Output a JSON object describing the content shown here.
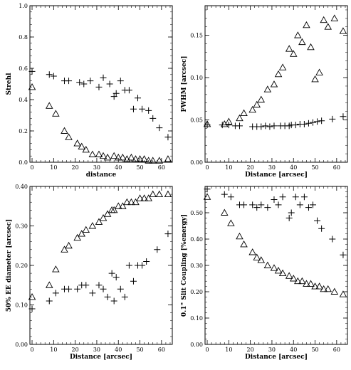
{
  "chart_data": [
    {
      "type": "scatter",
      "xlabel": "distance",
      "ylabel": "Strehl",
      "xlim": [
        -1,
        65
      ],
      "ylim": [
        0,
        1.0
      ],
      "xticks": [
        "0",
        "10",
        "20",
        "30",
        "40",
        "50",
        "60"
      ],
      "yticks": [
        "0.0",
        "0.2",
        "0.4",
        "0.6",
        "0.8",
        "1.0"
      ],
      "series": [
        {
          "marker": "plus",
          "x": [
            0,
            8,
            10,
            15,
            17,
            22,
            24,
            27,
            31,
            33,
            36,
            38,
            39,
            41,
            43,
            45,
            47,
            49,
            51,
            54,
            56,
            59,
            63
          ],
          "y": [
            0.58,
            0.56,
            0.55,
            0.52,
            0.52,
            0.51,
            0.5,
            0.52,
            0.48,
            0.54,
            0.5,
            0.42,
            0.44,
            0.52,
            0.46,
            0.46,
            0.34,
            0.41,
            0.34,
            0.33,
            0.28,
            0.22,
            0.16
          ]
        },
        {
          "marker": "triangle",
          "x": [
            0,
            8,
            11,
            15,
            17,
            21,
            23,
            25,
            28,
            31,
            33,
            35,
            38,
            40,
            42,
            44,
            46,
            48,
            50,
            52,
            54,
            56,
            59,
            63
          ],
          "y": [
            0.48,
            0.36,
            0.31,
            0.2,
            0.16,
            0.12,
            0.1,
            0.08,
            0.05,
            0.05,
            0.04,
            0.03,
            0.04,
            0.03,
            0.03,
            0.02,
            0.03,
            0.02,
            0.02,
            0.02,
            0.01,
            0.01,
            0.01,
            0.02
          ]
        }
      ]
    },
    {
      "type": "scatter",
      "xlabel": "Distance [arcsec]",
      "ylabel": "FWHM [arcsec]",
      "xlim": [
        -1,
        65
      ],
      "ylim": [
        0,
        0.185
      ],
      "xticks": [
        "0",
        "10",
        "20",
        "30",
        "40",
        "50",
        "60"
      ],
      "yticks": [
        "0.00",
        "0.05",
        "0.10",
        "0.15"
      ],
      "series": [
        {
          "marker": "plus",
          "x": [
            0,
            7,
            10,
            13,
            15,
            21,
            23,
            25,
            27,
            29,
            31,
            34,
            36,
            38,
            39,
            41,
            43,
            45,
            47,
            49,
            51,
            53,
            58,
            63
          ],
          "y": [
            0.044,
            0.044,
            0.044,
            0.043,
            0.043,
            0.042,
            0.042,
            0.042,
            0.043,
            0.042,
            0.043,
            0.043,
            0.043,
            0.043,
            0.044,
            0.044,
            0.045,
            0.045,
            0.046,
            0.047,
            0.048,
            0.049,
            0.051,
            0.054
          ]
        },
        {
          "marker": "triangle",
          "x": [
            0,
            8,
            10,
            15,
            17,
            21,
            23,
            25,
            28,
            31,
            33,
            35,
            38,
            40,
            42,
            44,
            46,
            48,
            50,
            52,
            54,
            56,
            59,
            63
          ],
          "y": [
            0.045,
            0.045,
            0.048,
            0.052,
            0.058,
            0.062,
            0.068,
            0.074,
            0.086,
            0.092,
            0.104,
            0.112,
            0.134,
            0.128,
            0.15,
            0.142,
            0.162,
            0.136,
            0.098,
            0.106,
            0.168,
            0.16,
            0.17,
            0.155
          ]
        }
      ]
    },
    {
      "type": "scatter",
      "xlabel": "Distance [arcsec]",
      "ylabel": "50% EE diameter [arcsec]",
      "xlim": [
        -1,
        65
      ],
      "ylim": [
        0,
        0.4
      ],
      "xticks": [
        "0",
        "10",
        "20",
        "30",
        "40",
        "50",
        "60"
      ],
      "yticks": [
        "0.00",
        "0.10",
        "0.20",
        "0.30",
        "0.40"
      ],
      "series": [
        {
          "marker": "plus",
          "x": [
            0,
            8,
            11,
            15,
            17,
            21,
            23,
            25,
            28,
            31,
            33,
            35,
            37,
            38,
            39,
            41,
            43,
            45,
            47,
            49,
            51,
            53,
            58,
            63
          ],
          "y": [
            0.09,
            0.11,
            0.13,
            0.14,
            0.14,
            0.14,
            0.15,
            0.15,
            0.13,
            0.15,
            0.14,
            0.12,
            0.18,
            0.11,
            0.17,
            0.14,
            0.12,
            0.2,
            0.16,
            0.2,
            0.2,
            0.21,
            0.24,
            0.28
          ]
        },
        {
          "marker": "triangle",
          "x": [
            0,
            8,
            11,
            15,
            17,
            21,
            23,
            25,
            28,
            31,
            33,
            35,
            37,
            38,
            40,
            42,
            44,
            46,
            48,
            50,
            52,
            54,
            56,
            59,
            63
          ],
          "y": [
            0.12,
            0.15,
            0.19,
            0.24,
            0.25,
            0.27,
            0.28,
            0.29,
            0.3,
            0.31,
            0.32,
            0.33,
            0.34,
            0.34,
            0.35,
            0.35,
            0.36,
            0.36,
            0.36,
            0.37,
            0.37,
            0.37,
            0.38,
            0.38,
            0.38
          ]
        }
      ]
    },
    {
      "type": "scatter",
      "xlabel": "Distance [arcsec]",
      "ylabel": "0.1\" Slit Coupling [%energy]",
      "xlim": [
        -1,
        65
      ],
      "ylim": [
        0,
        0.6
      ],
      "xticks": [
        "0",
        "10",
        "20",
        "30",
        "40",
        "50",
        "60"
      ],
      "yticks": [
        "0.00",
        "0.10",
        "0.20",
        "0.30",
        "0.40",
        "0.50"
      ],
      "series": [
        {
          "marker": "plus",
          "x": [
            0,
            8,
            11,
            15,
            17,
            21,
            23,
            25,
            28,
            31,
            33,
            35,
            38,
            39,
            41,
            43,
            45,
            47,
            49,
            51,
            53,
            58,
            63
          ],
          "y": [
            0.59,
            0.57,
            0.56,
            0.53,
            0.53,
            0.53,
            0.52,
            0.53,
            0.52,
            0.55,
            0.53,
            0.56,
            0.48,
            0.5,
            0.56,
            0.53,
            0.56,
            0.52,
            0.53,
            0.47,
            0.44,
            0.4,
            0.34
          ]
        },
        {
          "marker": "triangle",
          "x": [
            0,
            8,
            11,
            15,
            17,
            21,
            23,
            25,
            28,
            31,
            33,
            35,
            38,
            40,
            42,
            44,
            46,
            48,
            50,
            52,
            54,
            56,
            59,
            63
          ],
          "y": [
            0.56,
            0.5,
            0.46,
            0.41,
            0.38,
            0.35,
            0.33,
            0.32,
            0.3,
            0.29,
            0.28,
            0.27,
            0.26,
            0.25,
            0.24,
            0.24,
            0.23,
            0.23,
            0.22,
            0.22,
            0.21,
            0.21,
            0.2,
            0.19
          ]
        }
      ]
    }
  ]
}
